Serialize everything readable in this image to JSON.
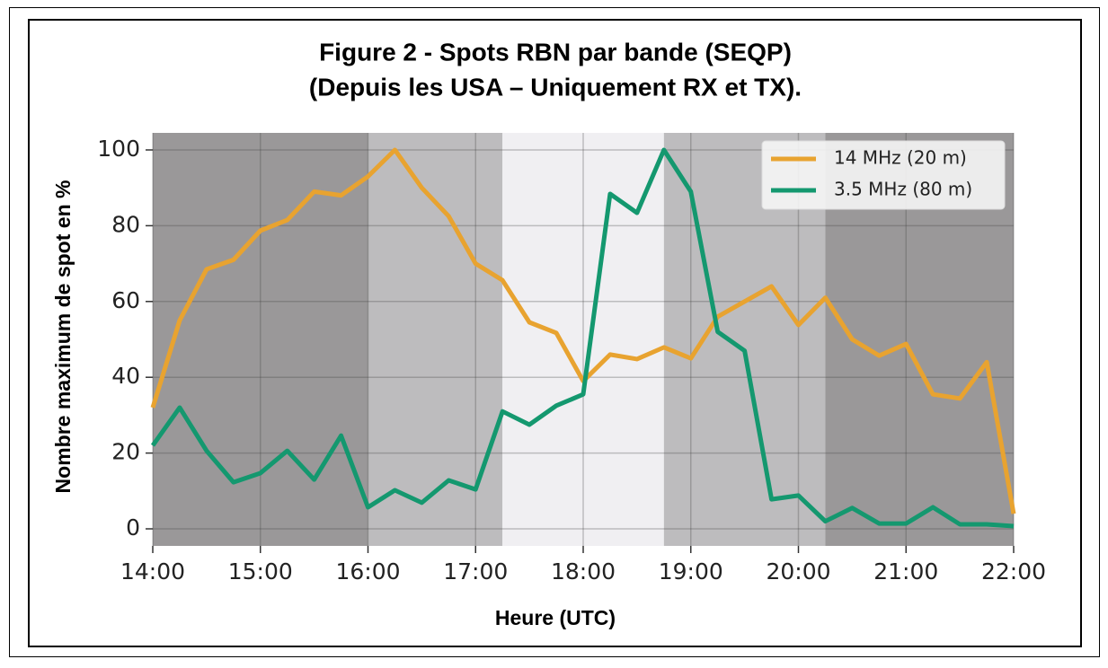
{
  "chart_data": {
    "type": "line",
    "title": [
      "Figure 2 - Spots RBN par bande (SEQP)",
      "(Depuis les USA – Uniquement RX et TX)."
    ],
    "x_label": "Heure (UTC)",
    "y_label": "Nombre maximum de spot en %",
    "x": [
      14,
      14.25,
      14.5,
      14.75,
      15,
      15.25,
      15.5,
      15.75,
      16,
      16.25,
      16.5,
      16.75,
      17,
      17.25,
      17.5,
      17.75,
      18,
      18.25,
      18.5,
      18.75,
      19,
      19.25,
      19.5,
      19.75,
      20,
      20.25,
      20.5,
      20.75,
      21,
      21.25,
      21.5,
      21.75,
      22
    ],
    "series": [
      {
        "name": "14 MHz (20 m)",
        "color": "#e8a330",
        "values": [
          32,
          55,
          68.5,
          71,
          78.7,
          81.5,
          89,
          88,
          93,
          100,
          90,
          82.5,
          70,
          65.6,
          54.5,
          51.7,
          39,
          46,
          44.8,
          47.9,
          45,
          56,
          60,
          64,
          53.8,
          61,
          50,
          45.7,
          48.8,
          35.5,
          34.4,
          44,
          4
        ]
      },
      {
        "name": "3.5 MHz (80 m)",
        "color": "#14986f",
        "values": [
          22,
          32,
          20.6,
          12.3,
          14.7,
          20.6,
          13,
          24.6,
          5.7,
          10.2,
          6.9,
          12.8,
          10.4,
          31,
          27.5,
          32.5,
          35.5,
          88.4,
          83.4,
          100,
          89,
          52,
          47,
          7.8,
          8.8,
          2,
          5.5,
          1.4,
          1.4,
          5.7,
          1.2,
          1.2,
          0.7
        ]
      }
    ],
    "bands": [
      {
        "from": 14,
        "to": 16,
        "color": "#9a9899"
      },
      {
        "from": 16,
        "to": 17.25,
        "color": "#bdbcbe"
      },
      {
        "from": 17.25,
        "to": 18.75,
        "color": "#f0eff2"
      },
      {
        "from": 18.75,
        "to": 20.25,
        "color": "#bdbcbe"
      },
      {
        "from": 20.25,
        "to": 22,
        "color": "#9a9899"
      }
    ],
    "xlim": [
      14,
      22
    ],
    "xticks": [
      {
        "value": 14,
        "label": "14:00"
      },
      {
        "value": 15,
        "label": "15:00"
      },
      {
        "value": 16,
        "label": "16:00"
      },
      {
        "value": 17,
        "label": "17:00"
      },
      {
        "value": 18,
        "label": "18:00"
      },
      {
        "value": 19,
        "label": "19:00"
      },
      {
        "value": 20,
        "label": "20:00"
      },
      {
        "value": 21,
        "label": "21:00"
      },
      {
        "value": 22,
        "label": "22:00"
      }
    ],
    "ylim": [
      -4.5,
      104.5
    ],
    "yticks": [
      0,
      20,
      40,
      60,
      80,
      100
    ],
    "grid": true,
    "legend": "upper right"
  }
}
